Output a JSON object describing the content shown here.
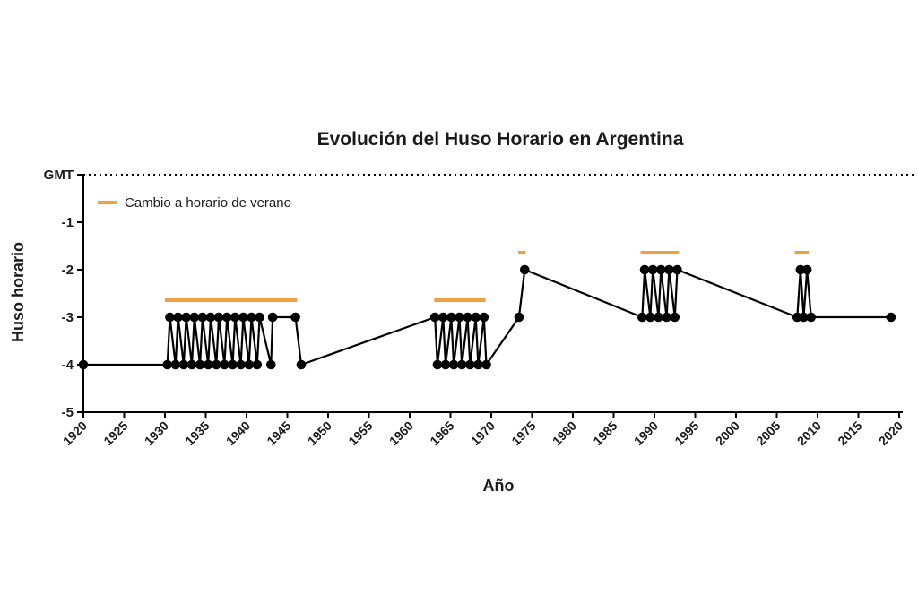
{
  "chart_data": {
    "type": "line",
    "title": "Evolución del Huso Horario en Argentina",
    "xlabel": "Año",
    "ylabel": "Huso horario",
    "xlim": [
      1920,
      2020
    ],
    "ylim": [
      -5,
      0
    ],
    "xticks": [
      1920,
      1925,
      1930,
      1935,
      1940,
      1945,
      1950,
      1955,
      1960,
      1965,
      1970,
      1975,
      1980,
      1985,
      1990,
      1995,
      2000,
      2005,
      2010,
      2015,
      2020
    ],
    "yticks": [
      {
        "value": 0,
        "label": "GMT"
      },
      {
        "value": -1,
        "label": "-1"
      },
      {
        "value": -2,
        "label": "-2"
      },
      {
        "value": -3,
        "label": "-3"
      },
      {
        "value": -4,
        "label": "-4"
      },
      {
        "value": -5,
        "label": "-5"
      }
    ],
    "reference_line": {
      "value": 0,
      "style": "dotted"
    },
    "colors": {
      "series": "#000000",
      "legend": "#f0a040"
    },
    "legend": {
      "label": "Cambio a horario de verano",
      "placement": "top-left"
    },
    "series": [
      {
        "points": [
          [
            1920,
            -4
          ],
          [
            1930.3,
            -4
          ],
          [
            1930.6,
            -3
          ],
          [
            1931.3,
            -4
          ],
          [
            1931.6,
            -3
          ],
          [
            1932.3,
            -4
          ],
          [
            1932.6,
            -3
          ],
          [
            1933.3,
            -4
          ],
          [
            1933.6,
            -3
          ],
          [
            1934.3,
            -4
          ],
          [
            1934.6,
            -3
          ],
          [
            1935.3,
            -4
          ],
          [
            1935.6,
            -3
          ],
          [
            1936.3,
            -4
          ],
          [
            1936.6,
            -3
          ],
          [
            1937.3,
            -4
          ],
          [
            1937.6,
            -3
          ],
          [
            1938.3,
            -4
          ],
          [
            1938.6,
            -3
          ],
          [
            1939.3,
            -4
          ],
          [
            1939.6,
            -3
          ],
          [
            1940.3,
            -4
          ],
          [
            1940.6,
            -3
          ],
          [
            1941.3,
            -4
          ],
          [
            1941.6,
            -3
          ],
          [
            1943,
            -4
          ],
          [
            1943.2,
            -3
          ],
          [
            1946,
            -3
          ],
          [
            1946.7,
            -4
          ],
          [
            1963.1,
            -3
          ],
          [
            1963.4,
            -4
          ],
          [
            1964.1,
            -3
          ],
          [
            1964.4,
            -4
          ],
          [
            1965.1,
            -3
          ],
          [
            1965.4,
            -4
          ],
          [
            1966.1,
            -3
          ],
          [
            1966.4,
            -4
          ],
          [
            1967.1,
            -3
          ],
          [
            1967.4,
            -4
          ],
          [
            1968.1,
            -3
          ],
          [
            1968.4,
            -4
          ],
          [
            1969.1,
            -3
          ],
          [
            1969.4,
            -4
          ],
          [
            1973.4,
            -3
          ],
          [
            1974.1,
            -2
          ],
          [
            1988.5,
            -3
          ],
          [
            1988.8,
            -2
          ],
          [
            1989.5,
            -3
          ],
          [
            1989.8,
            -2
          ],
          [
            1990.5,
            -3
          ],
          [
            1990.8,
            -2
          ],
          [
            1991.5,
            -3
          ],
          [
            1991.8,
            -2
          ],
          [
            1992.5,
            -3
          ],
          [
            1992.8,
            -2
          ],
          [
            2007.5,
            -3
          ],
          [
            2007.9,
            -2
          ],
          [
            2008.3,
            -3
          ],
          [
            2008.7,
            -2
          ],
          [
            2009.2,
            -3
          ],
          [
            2019,
            -3
          ]
        ]
      }
    ],
    "dst_periods": [
      {
        "start": 1930,
        "end": 1946.2
      },
      {
        "start": 1963,
        "end": 1969.3
      },
      {
        "start": 1973.3,
        "end": 1974.2
      },
      {
        "start": 1988.3,
        "end": 1993.0
      },
      {
        "start": 2007.2,
        "end": 2008.9
      }
    ]
  }
}
